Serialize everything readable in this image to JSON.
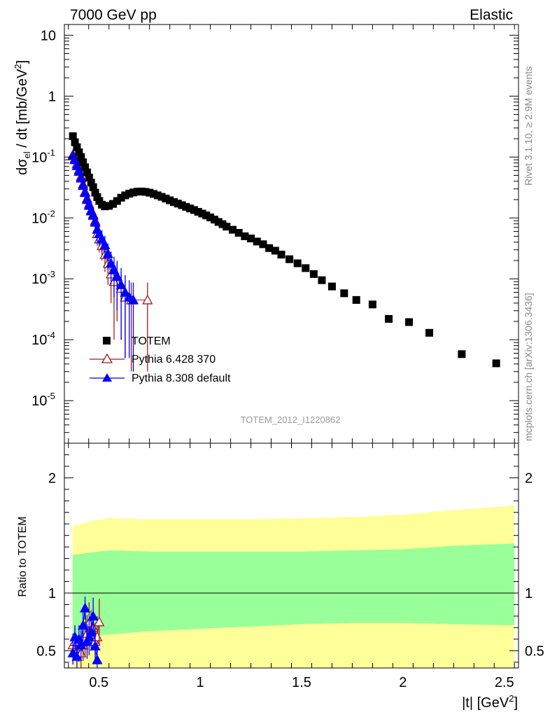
{
  "header": {
    "left": "7000 GeV pp",
    "right": "Elastic"
  },
  "side_labels": {
    "rivet": "Rivet 3.1.10, ≥ 2.9M events",
    "mcplots": "mcplots.cern.ch [arXiv:1306.3436]"
  },
  "analysis_tag": "TOTEM_2012_I1220862",
  "colors": {
    "data": "#000000",
    "pythia6": "#a01c1c",
    "pythia8": "#0000ff",
    "band_inner": "#99ff99",
    "band_outer": "#ffff99"
  },
  "chart_data": [
    {
      "type": "scatter",
      "panel": "main",
      "ylabel_parts": {
        "d": "d",
        "sigma": "σ",
        "sub": "el",
        "rest": " / dt [mb/GeV",
        "sup": "2",
        "close": "]"
      },
      "yscale": "log",
      "ylim": [
        2e-06,
        15
      ],
      "xlim": [
        0.33,
        2.57
      ],
      "ytick_labels": [
        {
          "base": "10",
          "exp": "-5",
          "v": 1e-05
        },
        {
          "base": "10",
          "exp": "-4",
          "v": 0.0001
        },
        {
          "base": "10",
          "exp": "-3",
          "v": 0.001
        },
        {
          "base": "10",
          "exp": "-2",
          "v": 0.01
        },
        {
          "base": "10",
          "exp": "-1",
          "v": 0.1
        },
        {
          "base": "1",
          "exp": "",
          "v": 1
        },
        {
          "base": "10",
          "exp": "",
          "v": 10
        }
      ],
      "legend_position": "bottom-left",
      "series": [
        {
          "name": "TOTEM",
          "marker": "square",
          "points": [
            [
              0.372,
              0.22
            ],
            [
              0.382,
              0.175
            ],
            [
              0.392,
              0.145
            ],
            [
              0.402,
              0.12
            ],
            [
              0.412,
              0.1
            ],
            [
              0.422,
              0.082
            ],
            [
              0.432,
              0.068
            ],
            [
              0.442,
              0.056
            ],
            [
              0.452,
              0.046
            ],
            [
              0.462,
              0.038
            ],
            [
              0.472,
              0.032
            ],
            [
              0.482,
              0.026
            ],
            [
              0.492,
              0.022
            ],
            [
              0.502,
              0.019
            ],
            [
              0.515,
              0.0165
            ],
            [
              0.53,
              0.0155
            ],
            [
              0.55,
              0.0158
            ],
            [
              0.57,
              0.017
            ],
            [
              0.59,
              0.019
            ],
            [
              0.61,
              0.0215
            ],
            [
              0.63,
              0.0235
            ],
            [
              0.65,
              0.025
            ],
            [
              0.67,
              0.0262
            ],
            [
              0.69,
              0.027
            ],
            [
              0.71,
              0.0272
            ],
            [
              0.73,
              0.0268
            ],
            [
              0.75,
              0.026
            ],
            [
              0.77,
              0.0248
            ],
            [
              0.79,
              0.0235
            ],
            [
              0.81,
              0.0222
            ],
            [
              0.83,
              0.0208
            ],
            [
              0.85,
              0.0195
            ],
            [
              0.87,
              0.0182
            ],
            [
              0.89,
              0.0172
            ],
            [
              0.91,
              0.0162
            ],
            [
              0.93,
              0.0152
            ],
            [
              0.95,
              0.0143
            ],
            [
              0.97,
              0.0135
            ],
            [
              0.99,
              0.0126
            ],
            [
              1.01,
              0.0118
            ],
            [
              1.03,
              0.011
            ],
            [
              1.05,
              0.0102
            ],
            [
              1.07,
              0.0094
            ],
            [
              1.09,
              0.0086
            ],
            [
              1.11,
              0.0079
            ],
            [
              1.13,
              0.0072
            ],
            [
              1.16,
              0.0064
            ],
            [
              1.19,
              0.0057
            ],
            [
              1.22,
              0.005
            ],
            [
              1.25,
              0.0046
            ],
            [
              1.28,
              0.0041
            ],
            [
              1.31,
              0.0037
            ],
            [
              1.34,
              0.0032
            ],
            [
              1.37,
              0.0029
            ],
            [
              1.4,
              0.0025
            ],
            [
              1.44,
              0.0021
            ],
            [
              1.48,
              0.0018
            ],
            [
              1.52,
              0.0015
            ],
            [
              1.56,
              0.0012
            ],
            [
              1.6,
              0.00095
            ],
            [
              1.65,
              0.00075
            ],
            [
              1.71,
              0.00058
            ],
            [
              1.77,
              0.00045
            ],
            [
              1.85,
              0.00038
            ],
            [
              1.93,
              0.00022
            ],
            [
              2.03,
              0.000195
            ],
            [
              2.13,
              0.00013
            ],
            [
              2.29,
              5.8e-05
            ],
            [
              2.46,
              4.1e-05
            ]
          ]
        },
        {
          "name": "Pythia 6.428 370",
          "marker": "open-triangle",
          "points": [
            [
              0.372,
              0.11,
              0.015
            ],
            [
              0.382,
              0.095,
              0.013
            ],
            [
              0.392,
              0.078,
              0.011
            ],
            [
              0.402,
              0.062,
              0.01
            ],
            [
              0.412,
              0.048,
              0.008
            ],
            [
              0.422,
              0.036,
              0.006
            ],
            [
              0.432,
              0.027,
              0.005
            ],
            [
              0.442,
              0.021,
              0.004
            ],
            [
              0.452,
              0.017,
              0.004
            ],
            [
              0.462,
              0.0135,
              0.0035
            ],
            [
              0.472,
              0.0115,
              0.003
            ],
            [
              0.482,
              0.009,
              0.003
            ],
            [
              0.492,
              0.0055,
              0.002
            ],
            [
              0.502,
              0.0045,
              0.0018
            ],
            [
              0.515,
              0.0035,
              0.0015
            ],
            [
              0.53,
              0.0025,
              0.0012
            ],
            [
              0.545,
              0.0018,
              0.001
            ],
            [
              0.56,
              0.0012,
              0.0008
            ],
            [
              0.575,
              0.0009,
              0.0008
            ],
            [
              0.59,
              0.0011,
              0.0009
            ],
            [
              0.61,
              0.0007,
              0.0006
            ],
            [
              0.63,
              0.0005,
              0.00045
            ],
            [
              0.66,
              0.00045,
              0.00042
            ],
            [
              0.74,
              0.00045,
              0.00042
            ]
          ]
        },
        {
          "name": "Pythia 8.308 default",
          "marker": "triangle",
          "points": [
            [
              0.372,
              0.105,
              0.014
            ],
            [
              0.382,
              0.09,
              0.012
            ],
            [
              0.392,
              0.072,
              0.01
            ],
            [
              0.402,
              0.058,
              0.009
            ],
            [
              0.412,
              0.045,
              0.007
            ],
            [
              0.422,
              0.034,
              0.006
            ],
            [
              0.432,
              0.026,
              0.005
            ],
            [
              0.442,
              0.02,
              0.004
            ],
            [
              0.452,
              0.016,
              0.0035
            ],
            [
              0.462,
              0.013,
              0.003
            ],
            [
              0.472,
              0.011,
              0.003
            ],
            [
              0.482,
              0.0085,
              0.0028
            ],
            [
              0.492,
              0.0065,
              0.0025
            ],
            [
              0.502,
              0.0055,
              0.002
            ],
            [
              0.515,
              0.0045,
              0.0018
            ],
            [
              0.53,
              0.0036,
              0.0015
            ],
            [
              0.545,
              0.0026,
              0.0012
            ],
            [
              0.56,
              0.0018,
              0.001
            ],
            [
              0.575,
              0.0014,
              0.0009
            ],
            [
              0.59,
              0.0011,
              0.0008
            ],
            [
              0.61,
              0.0008,
              0.0007
            ],
            [
              0.63,
              0.0006,
              0.00055
            ],
            [
              0.65,
              0.0005,
              0.00045
            ],
            [
              0.67,
              0.00045,
              0.00042
            ]
          ]
        }
      ]
    },
    {
      "type": "scatter",
      "panel": "ratio",
      "ylabel": "Ratio to TOTEM",
      "xlabel_parts": {
        "main": "|t| [GeV",
        "sup": "2",
        "close": "]"
      },
      "xlim": [
        0.33,
        2.57
      ],
      "ylim": [
        0.35,
        2.3
      ],
      "xticks": [
        "0.5",
        "1",
        "1.5",
        "2",
        "2.5"
      ],
      "yticks": [
        "0.5",
        "1",
        "2"
      ],
      "reference_line": 1,
      "band": {
        "x": [
          0.37,
          0.45,
          0.55,
          0.75,
          1.0,
          1.25,
          1.5,
          1.75,
          2.0,
          2.25,
          2.55
        ],
        "outer_high": [
          1.58,
          1.62,
          1.65,
          1.64,
          1.64,
          1.64,
          1.65,
          1.66,
          1.68,
          1.72,
          1.76
        ],
        "outer_low": [
          0.35,
          0.35,
          0.35,
          0.35,
          0.35,
          0.35,
          0.35,
          0.35,
          0.35,
          0.35,
          0.35
        ],
        "inner_high": [
          1.33,
          1.35,
          1.37,
          1.36,
          1.36,
          1.36,
          1.36,
          1.37,
          1.38,
          1.41,
          1.43
        ],
        "inner_low": [
          0.62,
          0.63,
          0.64,
          0.67,
          0.69,
          0.71,
          0.73,
          0.74,
          0.74,
          0.73,
          0.72
        ]
      },
      "series": [
        {
          "name": "Pythia 6.428 370",
          "points": [
            [
              0.372,
              0.55,
              0.1
            ],
            [
              0.382,
              0.58,
              0.12
            ],
            [
              0.392,
              0.5,
              0.1
            ],
            [
              0.402,
              0.52,
              0.12
            ],
            [
              0.412,
              0.48,
              0.14
            ],
            [
              0.422,
              0.55,
              0.14
            ],
            [
              0.432,
              0.6,
              0.15
            ],
            [
              0.442,
              0.65,
              0.16
            ],
            [
              0.452,
              0.74,
              0.18
            ],
            [
              0.462,
              0.68,
              0.17
            ],
            [
              0.472,
              0.7,
              0.17
            ],
            [
              0.482,
              0.58,
              0.16
            ],
            [
              0.492,
              0.62,
              0.18
            ],
            [
              0.502,
              0.75,
              0.2
            ]
          ]
        },
        {
          "name": "Pythia 8.308 default",
          "points": [
            [
              0.372,
              0.48,
              0.1
            ],
            [
              0.382,
              0.62,
              0.1
            ],
            [
              0.392,
              0.45,
              0.1
            ],
            [
              0.402,
              0.6,
              0.12
            ],
            [
              0.412,
              0.55,
              0.13
            ],
            [
              0.422,
              0.72,
              0.15
            ],
            [
              0.432,
              0.87,
              0.1
            ],
            [
              0.442,
              0.58,
              0.15
            ],
            [
              0.452,
              0.62,
              0.16
            ],
            [
              0.462,
              0.66,
              0.16
            ],
            [
              0.472,
              0.8,
              0.16
            ],
            [
              0.482,
              0.54,
              0.15
            ],
            [
              0.492,
              0.42,
              0.14
            ]
          ]
        }
      ]
    }
  ]
}
